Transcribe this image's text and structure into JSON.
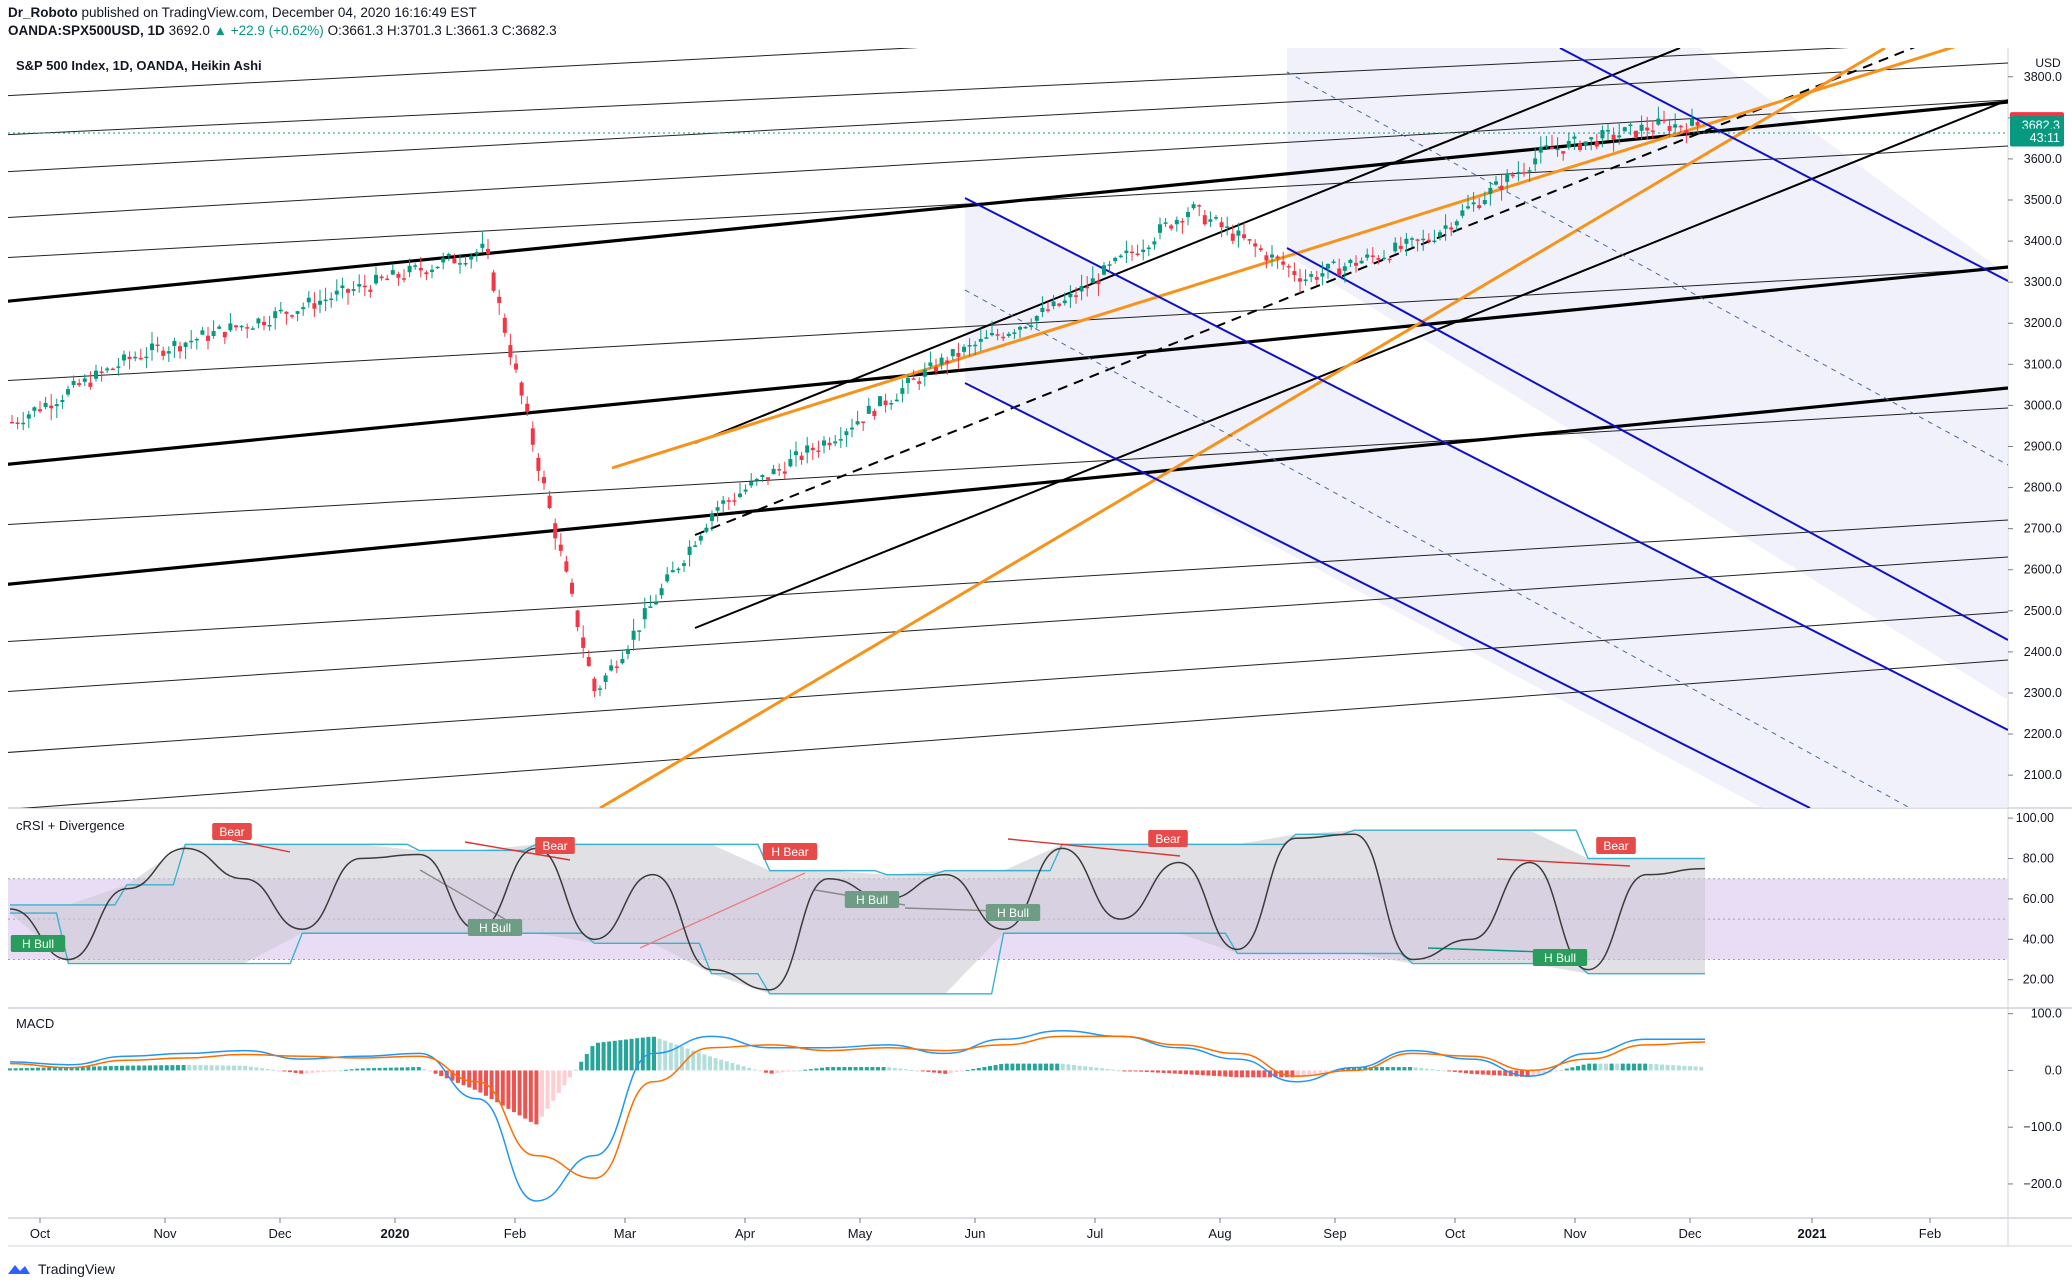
{
  "header": {
    "author": "Dr_Roboto",
    "published_text": "published on TradingView.com, December 04, 2020 16:16:49 EST",
    "symbol": "OANDA:SPX500USD, 1D",
    "price": "3692.0",
    "change": "▲ +22.9 (+0.62%)",
    "open_label": "O:",
    "open": "3661.3",
    "high_label": "H:",
    "high": "3701.3",
    "low_label": "L:",
    "low": "3661.3",
    "close_label": "C:",
    "close": "3682.3"
  },
  "main_pane": {
    "title": "S&P 500 Index, 1D, OANDA, Heikin Ashi",
    "currency": "USD",
    "price_badges": [
      {
        "text": "3692.0",
        "color": "#f23645",
        "value": 3692
      },
      {
        "text": "3682.3",
        "color": "#089981",
        "value": 3682.3
      },
      {
        "text": "43:11",
        "color": "#089981",
        "value": 3652
      }
    ]
  },
  "rsi_pane": {
    "title": "cRSI + Divergence",
    "labels": [
      {
        "text": "H Bull",
        "kind": "bull"
      },
      {
        "text": "Bear",
        "kind": "bear"
      },
      {
        "text": "Bear",
        "kind": "bear"
      },
      {
        "text": "H Bull",
        "kind": "bull-muted"
      },
      {
        "text": "H Bear",
        "kind": "bear"
      },
      {
        "text": "H Bull",
        "kind": "bull-muted"
      },
      {
        "text": "H Bull",
        "kind": "bull-muted"
      },
      {
        "text": "Bear",
        "kind": "bear"
      },
      {
        "text": "Bear",
        "kind": "bear"
      },
      {
        "text": "H Bull",
        "kind": "bull"
      }
    ]
  },
  "macd_pane": {
    "title": "MACD"
  },
  "colors": {
    "up": "#089981",
    "down": "#f23645",
    "orange": "#f7931a",
    "blue": "#1010c8",
    "rsi_band": "#e9dcf5",
    "rsi_cloud": "#d5d5da",
    "macd_line": "#2196f3",
    "signal_line": "#ff6d00"
  },
  "chart_data": [
    {
      "type": "candlestick",
      "title": "S&P 500 Index, 1D, OANDA, Heikin Ashi",
      "x_tick_labels": [
        "Oct",
        "Nov",
        "Dec",
        "2020",
        "Feb",
        "Mar",
        "Apr",
        "May",
        "Jun",
        "Jul",
        "Aug",
        "Sep",
        "Oct",
        "Nov",
        "Dec",
        "2021",
        "Feb"
      ],
      "y_ticks": [
        2100,
        2200,
        2300,
        2400,
        2500,
        2600,
        2700,
        2800,
        2900,
        3000,
        3100,
        3200,
        3300,
        3400,
        3500,
        3600,
        3700,
        3800
      ],
      "ylim": [
        2020,
        3870
      ],
      "y_axis_unit": "USD",
      "close_series_monthly": [
        {
          "x": "Oct 2019",
          "y": 2960
        },
        {
          "x": "Nov 2019",
          "y": 3120
        },
        {
          "x": "Dec 2019",
          "y": 3200
        },
        {
          "x": "Jan 2020",
          "y": 3290
        },
        {
          "x": "Feb 2020",
          "y": 3380
        },
        {
          "x": "Mar 2020",
          "y": 2300
        },
        {
          "x": "Apr 2020",
          "y": 2750
        },
        {
          "x": "May 2020",
          "y": 2920
        },
        {
          "x": "Jun 2020",
          "y": 3110
        },
        {
          "x": "Jul 2020",
          "y": 3250
        },
        {
          "x": "Aug 2020",
          "y": 3480
        },
        {
          "x": "Sep 2020",
          "y": 3310
        },
        {
          "x": "Oct 2020",
          "y": 3400
        },
        {
          "x": "Nov 2020",
          "y": 3620
        },
        {
          "x": "Dec 2020",
          "y": 3682.3
        }
      ],
      "last_price": 3682.3
    },
    {
      "type": "line",
      "title": "cRSI + Divergence",
      "y_ticks": [
        20,
        40,
        60,
        80,
        100
      ],
      "ylim": [
        6,
        105
      ],
      "band": [
        30,
        70
      ],
      "series": [
        {
          "values": [
            55,
            30,
            65,
            85,
            70,
            45,
            80,
            82,
            45,
            85,
            40,
            72,
            25,
            15,
            70,
            60,
            72,
            45,
            85,
            50,
            78,
            35,
            90,
            92,
            30,
            40,
            78,
            25,
            72,
            75
          ]
        }
      ]
    },
    {
      "type": "line",
      "title": "MACD",
      "y_ticks": [
        -200,
        -100,
        0,
        100
      ],
      "ylim": [
        -260,
        110
      ],
      "series": [
        {
          "values": [
            15,
            10,
            25,
            30,
            35,
            20,
            25,
            30,
            -50,
            -230,
            -150,
            30,
            60,
            40,
            40,
            45,
            30,
            55,
            70,
            60,
            40,
            20,
            -20,
            5,
            35,
            20,
            -10,
            30,
            55,
            55
          ]
        },
        {
          "values": [
            12,
            5,
            18,
            22,
            28,
            25,
            22,
            25,
            -20,
            -150,
            -190,
            -20,
            40,
            45,
            35,
            40,
            35,
            45,
            60,
            60,
            45,
            30,
            -10,
            0,
            30,
            25,
            0,
            20,
            45,
            50
          ]
        }
      ]
    }
  ],
  "footer": {
    "brand": "TradingView"
  }
}
